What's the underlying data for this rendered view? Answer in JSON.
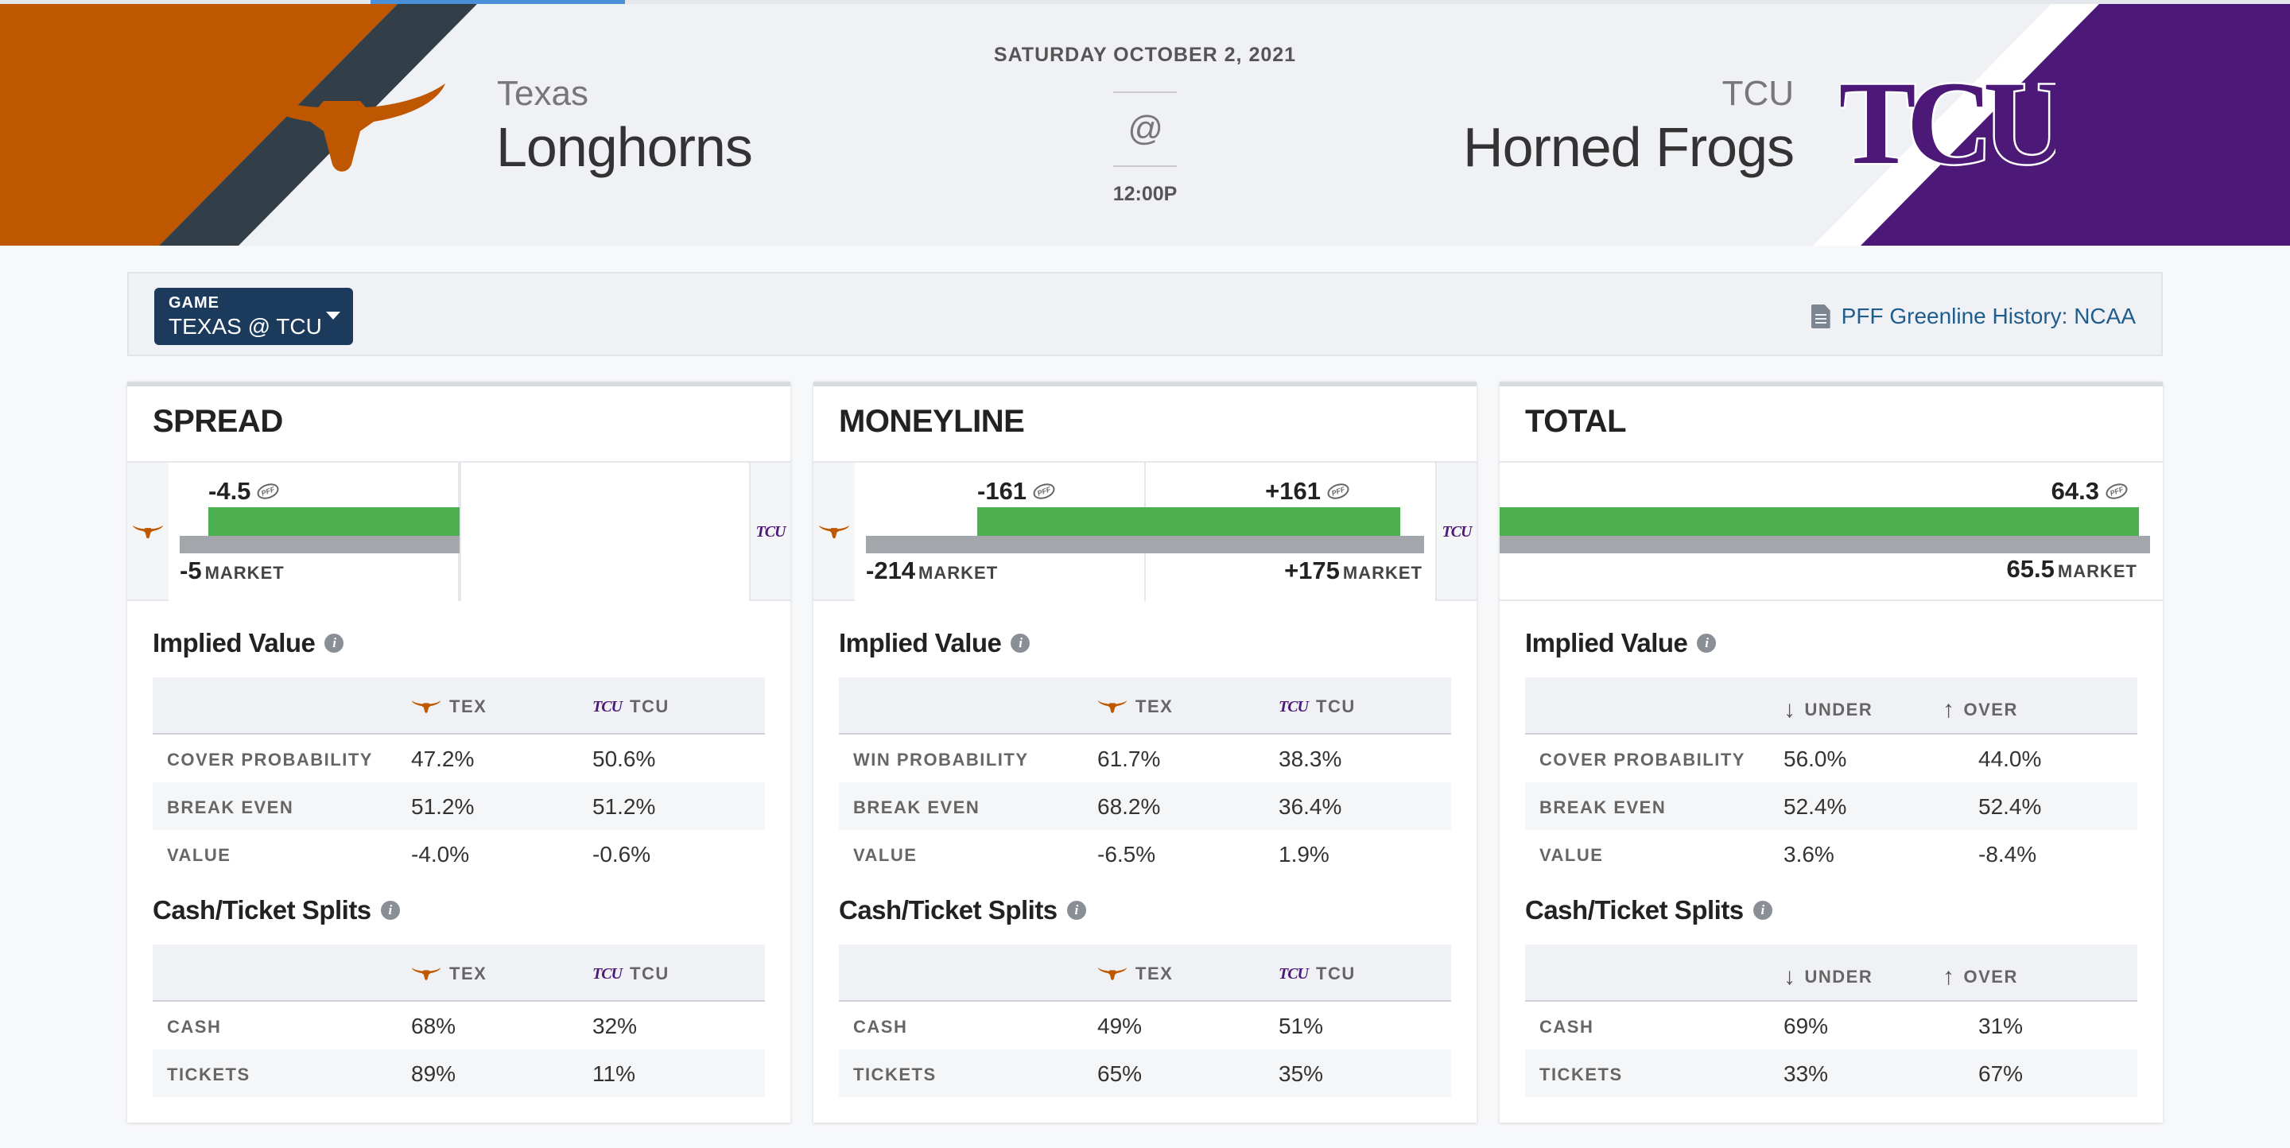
{
  "header": {
    "date": "SATURDAY OCTOBER 2, 2021",
    "at": "@",
    "time": "12:00P",
    "away": {
      "school": "Texas",
      "mascot": "Longhorns",
      "color": "#bf5700",
      "logo": "longhorn-logo"
    },
    "home": {
      "school": "TCU",
      "mascot": "Horned Frogs",
      "color": "#4d1979",
      "logo_text": "TCU"
    }
  },
  "filter": {
    "game_label": "GAME",
    "game_value": "TEXAS @ TCU",
    "history_link": "PFF Greenline History: NCAA"
  },
  "spread": {
    "title": "SPREAD",
    "pff_line": "-4.5",
    "market_line": "-5",
    "market_label": "MARKET",
    "implied_title": "Implied Value",
    "implied": {
      "cols": [
        "TEX",
        "TCU"
      ],
      "rows": [
        {
          "label": "COVER PROBABILITY",
          "a": "47.2%",
          "b": "50.6%"
        },
        {
          "label": "BREAK EVEN",
          "a": "51.2%",
          "b": "51.2%"
        },
        {
          "label": "VALUE",
          "a": "-4.0%",
          "b": "-0.6%"
        }
      ]
    },
    "splits_title": "Cash/Ticket Splits",
    "splits": {
      "cols": [
        "TEX",
        "TCU"
      ],
      "rows": [
        {
          "label": "CASH",
          "a": "68%",
          "b": "32%"
        },
        {
          "label": "TICKETS",
          "a": "89%",
          "b": "11%"
        }
      ]
    }
  },
  "moneyline": {
    "title": "MONEYLINE",
    "pff_away": "-161",
    "pff_home": "+161",
    "market_away": "-214",
    "market_home": "+175",
    "market_label": "MARKET",
    "implied_title": "Implied Value",
    "implied": {
      "cols": [
        "TEX",
        "TCU"
      ],
      "rows": [
        {
          "label": "WIN PROBABILITY",
          "a": "61.7%",
          "b": "38.3%"
        },
        {
          "label": "BREAK EVEN",
          "a": "68.2%",
          "b": "36.4%"
        },
        {
          "label": "VALUE",
          "a": "-6.5%",
          "b": "1.9%"
        }
      ]
    },
    "splits_title": "Cash/Ticket Splits",
    "splits": {
      "cols": [
        "TEX",
        "TCU"
      ],
      "rows": [
        {
          "label": "CASH",
          "a": "49%",
          "b": "51%"
        },
        {
          "label": "TICKETS",
          "a": "65%",
          "b": "35%"
        }
      ]
    }
  },
  "total": {
    "title": "TOTAL",
    "pff_line": "64.3",
    "market_line": "65.5",
    "market_label": "MARKET",
    "implied_title": "Implied Value",
    "implied": {
      "cols": [
        "UNDER",
        "OVER"
      ],
      "rows": [
        {
          "label": "COVER PROBABILITY",
          "a": "56.0%",
          "b": "44.0%"
        },
        {
          "label": "BREAK EVEN",
          "a": "52.4%",
          "b": "52.4%"
        },
        {
          "label": "VALUE",
          "a": "3.6%",
          "b": "-8.4%"
        }
      ]
    },
    "splits_title": "Cash/Ticket Splits",
    "splits": {
      "cols": [
        "UNDER",
        "OVER"
      ],
      "rows": [
        {
          "label": "CASH",
          "a": "69%",
          "b": "31%"
        },
        {
          "label": "TICKETS",
          "a": "33%",
          "b": "67%"
        }
      ]
    }
  },
  "colors": {
    "pff_bar": "#4caf50",
    "market_bar": "#a3a6ab",
    "navy": "#1b3a5c"
  }
}
